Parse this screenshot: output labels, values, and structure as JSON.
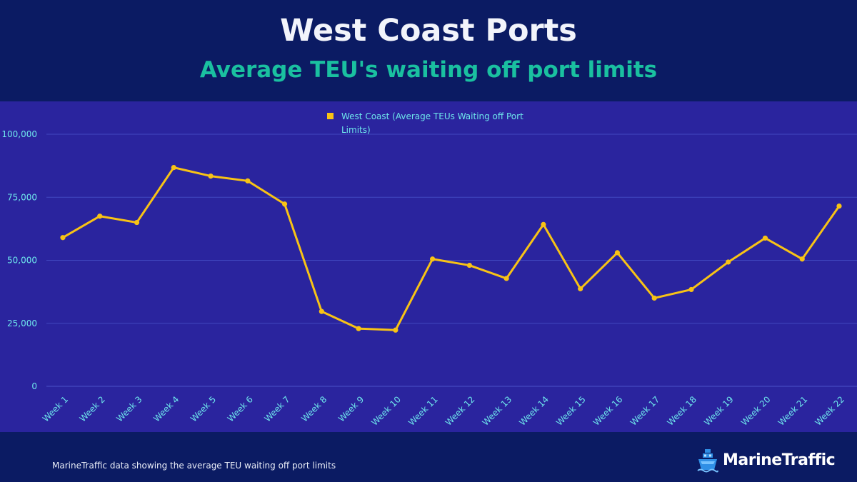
{
  "header": {
    "title": "West Coast Ports",
    "subtitle": "Average TEU's waiting off port limits"
  },
  "footer": {
    "note": "MarineTraffic data showing the average TEU waiting off port limits",
    "brand": "MarineTraffic"
  },
  "colors": {
    "background": "#0b1b63",
    "plot_background": "#2a249e",
    "line": "#f8c315",
    "axis_text": "#6ee6ec",
    "subtitle": "#1ac0a0"
  },
  "icons": {
    "logo": "ship-icon"
  },
  "chart_data": {
    "type": "line",
    "title": "West Coast Ports",
    "subtitle": "Average TEU's waiting off port limits",
    "categories": [
      "Week 1",
      "Week 2",
      "Week 3",
      "Week 4",
      "Week 5",
      "Week 6",
      "Week 7",
      "Week 8",
      "Week 9",
      "Week 10",
      "Week 11",
      "Week 12",
      "Week 13",
      "Week 14",
      "Week 15",
      "Week 16",
      "Week 17",
      "Week 18",
      "Week 19",
      "Week 20",
      "Week 21",
      "Week 22"
    ],
    "series": [
      {
        "name": "West Coast (Average TEUs Waiting off Port Limits)",
        "values": [
          59000,
          67500,
          65000,
          86800,
          83400,
          81500,
          72300,
          29700,
          22900,
          22300,
          50500,
          48000,
          42800,
          64200,
          38700,
          53000,
          35000,
          38400,
          49300,
          58800,
          50500,
          71500
        ]
      }
    ],
    "yticks": [
      "0",
      "25,000",
      "50,000",
      "75,000",
      "100,000"
    ],
    "ylim": [
      0,
      100000
    ],
    "xlabel": "",
    "ylabel": "",
    "grid": true,
    "legend_position": "top-center"
  }
}
